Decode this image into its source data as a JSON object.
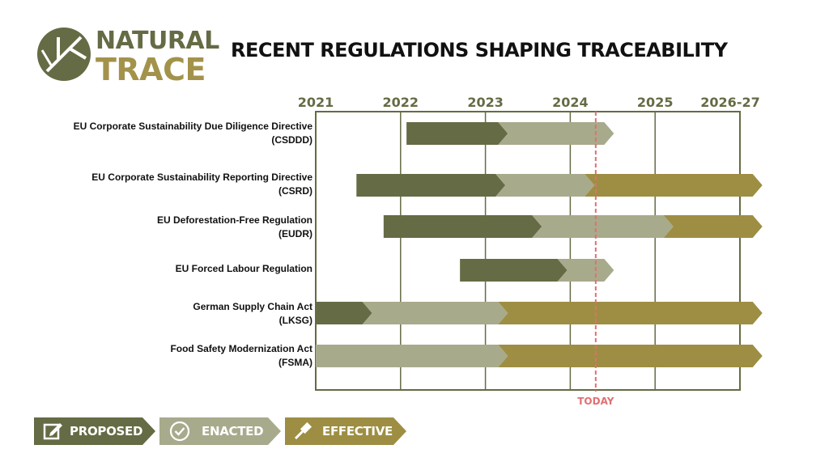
{
  "brand": {
    "line1": "NATURAL",
    "line2": "TRACE"
  },
  "title": "RECENT REGULATIONS SHAPING TRACEABILITY",
  "colors": {
    "proposed": "#656b44",
    "enacted": "#a8aa8c",
    "effective": "#9d8e43",
    "grid": "#656b44",
    "today": "#e07070"
  },
  "timeline": {
    "ticks": [
      "2021",
      "2022",
      "2023",
      "2024",
      "2025",
      "2026-27"
    ],
    "today_label": "TODAY",
    "today_value": 2024.3
  },
  "rows": [
    {
      "line1": "EU Corporate Sustainability Due Diligence Directive",
      "line2": "(CSDDD)",
      "segments": [
        {
          "status": "proposed",
          "start": 2022.07,
          "end": 2023.15
        },
        {
          "status": "enacted",
          "start": 2023.15,
          "end": 2024.4
        }
      ]
    },
    {
      "line1": "EU Corporate Sustainability Reporting Directive",
      "line2": "(CSRD)",
      "segments": [
        {
          "status": "proposed",
          "start": 2021.48,
          "end": 2023.12
        },
        {
          "status": "enacted",
          "start": 2023.12,
          "end": 2024.17
        },
        {
          "status": "effective",
          "start": 2024.17,
          "end": 2026.15
        }
      ]
    },
    {
      "line1": "EU Deforestation-Free Regulation",
      "line2": "(EUDR)",
      "segments": [
        {
          "status": "proposed",
          "start": 2021.8,
          "end": 2023.55
        },
        {
          "status": "enacted",
          "start": 2023.55,
          "end": 2025.1
        },
        {
          "status": "effective",
          "start": 2025.1,
          "end": 2026.15
        }
      ]
    },
    {
      "line1": "EU Forced Labour Regulation",
      "line2": "",
      "segments": [
        {
          "status": "proposed",
          "start": 2022.7,
          "end": 2023.85
        },
        {
          "status": "enacted",
          "start": 2023.85,
          "end": 2024.4
        }
      ]
    },
    {
      "line1": "German Supply Chain Act",
      "line2": "(LKSG)",
      "segments": [
        {
          "status": "proposed",
          "start": 2021.0,
          "end": 2021.55
        },
        {
          "status": "enacted",
          "start": 2021.55,
          "end": 2023.15
        },
        {
          "status": "effective",
          "start": 2023.15,
          "end": 2026.15
        }
      ]
    },
    {
      "line1": "Food Safety Modernization Act",
      "line2": "(FSMA)",
      "segments": [
        {
          "status": "enacted",
          "start": 2021.0,
          "end": 2023.15
        },
        {
          "status": "effective",
          "start": 2023.15,
          "end": 2026.15
        }
      ]
    }
  ],
  "legend": [
    {
      "status": "proposed",
      "label": "PROPOSED",
      "icon": "edit-icon"
    },
    {
      "status": "enacted",
      "label": "ENACTED",
      "icon": "check-circle-icon"
    },
    {
      "status": "effective",
      "label": "EFFECTIVE",
      "icon": "gavel-icon"
    }
  ]
}
